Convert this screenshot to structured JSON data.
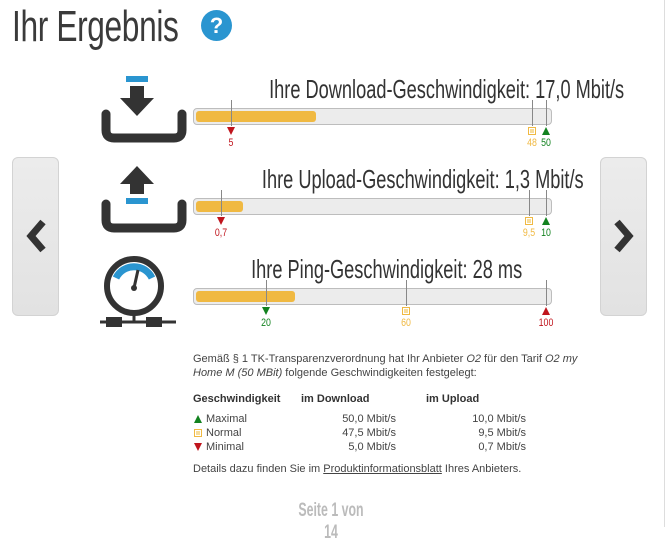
{
  "header": {
    "title": "Ihr Ergebnis",
    "help_icon": "question-circle-icon"
  },
  "colors": {
    "fill": "#f0b942",
    "min": "#c0151d",
    "normal": "#f0b942",
    "max": "#12821f",
    "accent": "#2a95d0"
  },
  "rows": [
    {
      "title": "Ihre Download-Geschwindigkeit: 17,0 Mbit/s",
      "icon": "download-icon",
      "value": 17.0,
      "scale_max": 50,
      "markers": [
        {
          "value": 5,
          "label": "5",
          "type": "min"
        },
        {
          "value": 48,
          "label": "48",
          "type": "normal"
        },
        {
          "value": 50,
          "label": "50",
          "type": "max"
        }
      ]
    },
    {
      "title": "Ihre Upload-Geschwindigkeit: 1,3 Mbit/s",
      "icon": "upload-icon",
      "value": 1.3,
      "scale_max": 10,
      "markers": [
        {
          "value": 0.7,
          "label": "0,7",
          "type": "min"
        },
        {
          "value": 9.5,
          "label": "9,5",
          "type": "normal"
        },
        {
          "value": 10,
          "label": "10",
          "type": "max"
        }
      ]
    },
    {
      "title": "Ihre Ping-Geschwindigkeit: 28 ms",
      "icon": "speedometer-icon",
      "value": 28,
      "scale_max": 100,
      "markers": [
        {
          "value": 20,
          "label": "20",
          "type": "max-good"
        },
        {
          "value": 60,
          "label": "60",
          "type": "normal"
        },
        {
          "value": 100,
          "label": "100",
          "type": "min-bad"
        }
      ]
    }
  ],
  "info": {
    "text1": "Gemäß § 1 TK-Transparenzverordnung hat Ihr Anbieter ",
    "provider": "O2",
    "text2": " für den Tarif ",
    "tariff": "O2 my Home M (50 MBit)",
    "text3": " folgende Geschwindigkeiten festgelegt:",
    "table": {
      "headers": [
        "Geschwindigkeit",
        "im Download",
        "im Upload"
      ],
      "rows": [
        {
          "label": "Maximal",
          "download": "50,0 Mbit/s",
          "upload": "10,0 Mbit/s"
        },
        {
          "label": "Normal",
          "download": "47,5 Mbit/s",
          "upload": "9,5 Mbit/s"
        },
        {
          "label": "Minimal",
          "download": "5,0 Mbit/s",
          "upload": "0,7 Mbit/s"
        }
      ]
    },
    "details_pre": "Details dazu finden Sie im ",
    "details_link": "Produktinformationsblatt",
    "details_post": " Ihres Anbieters."
  },
  "pager": "Seite 1 von 14"
}
